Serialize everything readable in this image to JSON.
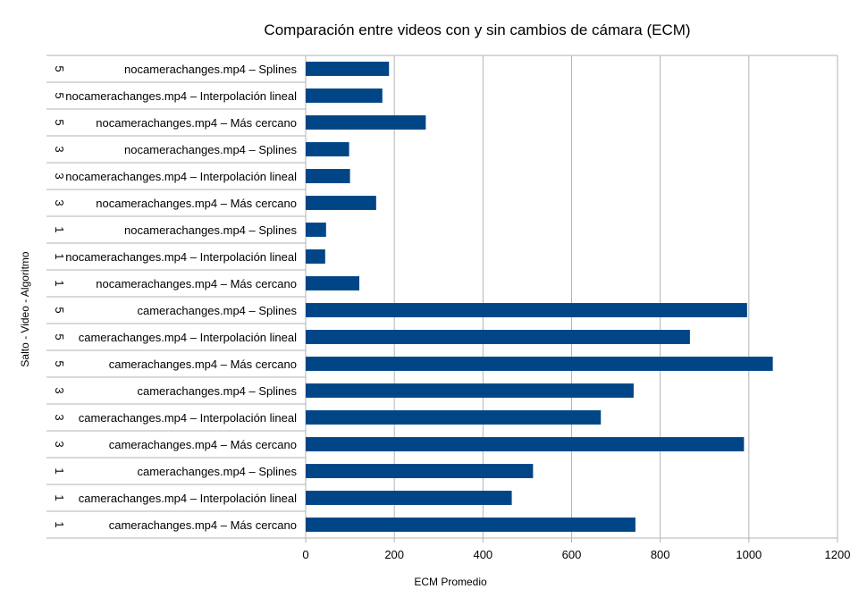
{
  "chart_data": {
    "type": "bar",
    "orientation": "horizontal",
    "title": "Comparación entre videos con y sin cambios de cámara (ECM)",
    "xlabel": "ECM Promedio",
    "ylabel": "Salto - Video - Algoritmo",
    "xlim": [
      0,
      1200
    ],
    "x_ticks": [
      0,
      200,
      400,
      600,
      800,
      1000,
      1200
    ],
    "grid": true,
    "legend": "none",
    "bar_color": "#004586",
    "categories": [
      {
        "jump": "5",
        "label": "nocamerachanges.mp4 – Splines",
        "value": 188
      },
      {
        "jump": "5",
        "label": "nocamerachanges.mp4 – Interpolación lineal",
        "value": 173
      },
      {
        "jump": "5",
        "label": "nocamerachanges.mp4 – Más cercano",
        "value": 271
      },
      {
        "jump": "3",
        "label": "nocamerachanges.mp4 – Splines",
        "value": 98
      },
      {
        "jump": "3",
        "label": "nocamerachanges.mp4 – Interpolación lineal",
        "value": 100
      },
      {
        "jump": "3",
        "label": "nocamerachanges.mp4 – Más cercano",
        "value": 159
      },
      {
        "jump": "1",
        "label": "nocamerachanges.mp4 – Splines",
        "value": 46
      },
      {
        "jump": "1",
        "label": "nocamerachanges.mp4 – Interpolación lineal",
        "value": 44
      },
      {
        "jump": "1",
        "label": "nocamerachanges.mp4 – Más cercano",
        "value": 121
      },
      {
        "jump": "5",
        "label": "camerachanges.mp4 – Splines",
        "value": 996
      },
      {
        "jump": "5",
        "label": "camerachanges.mp4 – Interpolación lineal",
        "value": 867
      },
      {
        "jump": "5",
        "label": "camerachanges.mp4 – Más cercano",
        "value": 1054
      },
      {
        "jump": "3",
        "label": "camerachanges.mp4 – Splines",
        "value": 740
      },
      {
        "jump": "3",
        "label": "camerachanges.mp4 – Interpolación lineal",
        "value": 666
      },
      {
        "jump": "3",
        "label": "camerachanges.mp4 – Más cercano",
        "value": 989
      },
      {
        "jump": "1",
        "label": "camerachanges.mp4 – Splines",
        "value": 513
      },
      {
        "jump": "1",
        "label": "camerachanges.mp4 – Interpolación lineal",
        "value": 465
      },
      {
        "jump": "1",
        "label": "camerachanges.mp4 – Más cercano",
        "value": 744
      }
    ]
  }
}
